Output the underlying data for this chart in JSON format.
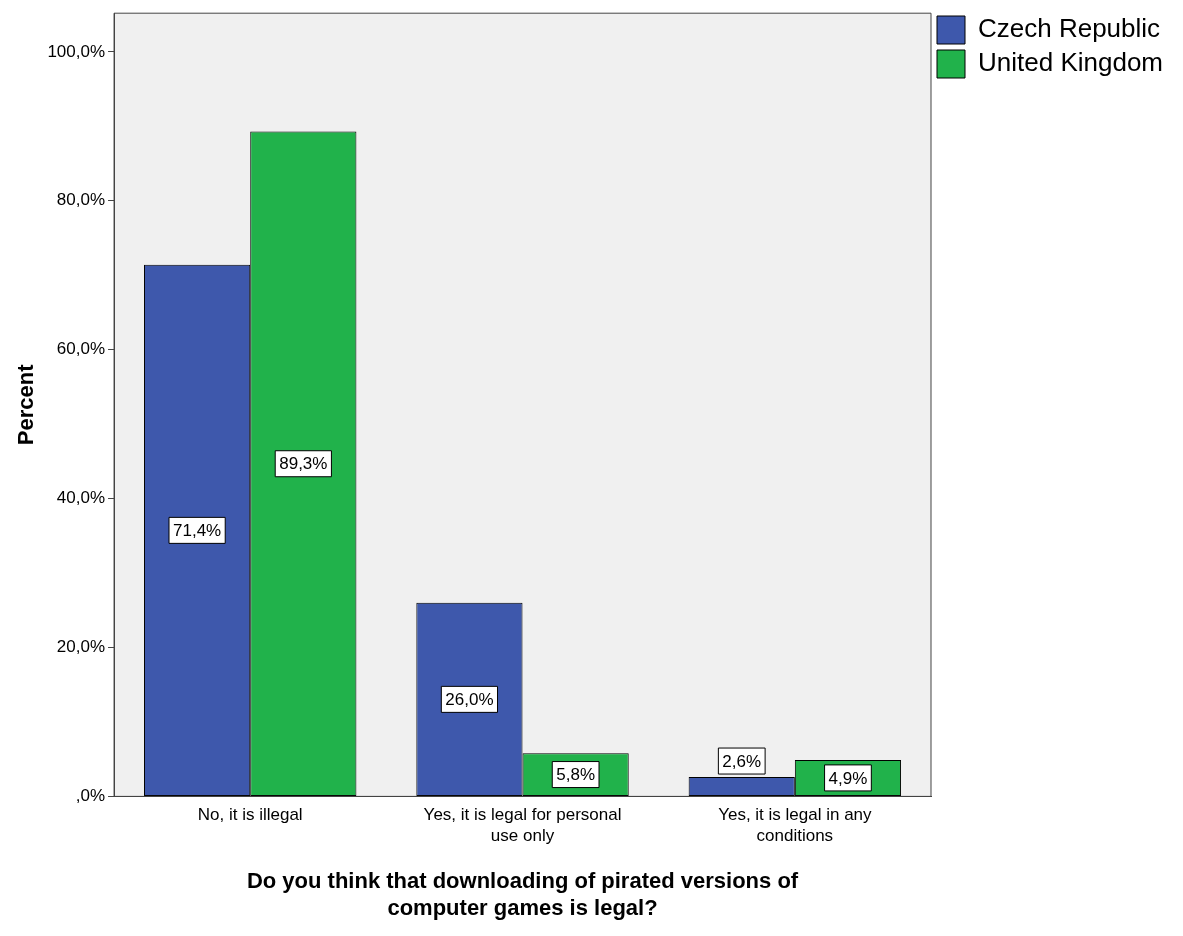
{
  "chart_data": {
    "type": "bar",
    "xlabel": "Do you think that downloading of pirated versions of computer games is legal?",
    "ylabel": "Percent",
    "categories": [
      "No, it is illegal",
      "Yes, it is legal for personal use only",
      "Yes, it is legal in any conditions"
    ],
    "series": [
      {
        "name": "Czech Republic",
        "color": "#3e58ac",
        "values": [
          71.4,
          26.0,
          2.6
        ],
        "value_labels": [
          "71,4%",
          "26,0%",
          "2,6%"
        ]
      },
      {
        "name": "United Kingdom",
        "color": "#21b24b",
        "values": [
          89.3,
          5.8,
          4.9
        ],
        "value_labels": [
          "89,3%",
          "5,8%",
          "4,9%"
        ]
      }
    ],
    "ylim": [
      0,
      105.2
    ],
    "yticks": [
      {
        "value": 0,
        "label": ",0%"
      },
      {
        "value": 20,
        "label": "20,0%"
      },
      {
        "value": 40,
        "label": "40,0%"
      },
      {
        "value": 60,
        "label": "60,0%"
      },
      {
        "value": 80,
        "label": "80,0%"
      },
      {
        "value": 100,
        "label": "100,0%"
      }
    ],
    "grid": false,
    "legend": "top right"
  }
}
